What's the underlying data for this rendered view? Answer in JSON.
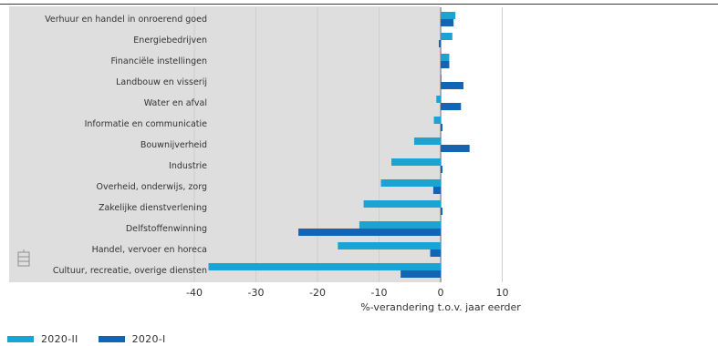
{
  "chart_data": {
    "type": "bar",
    "orientation": "horizontal",
    "categories": [
      "Verhuur en handel in onroerend goed",
      "Energiebedrijven",
      "Financiële instellingen",
      "Landbouw en visserij",
      "Water en afval",
      "Informatie en communicatie",
      "Bouwnijverheid",
      "Industrie",
      "Overheid, onderwijs, zorg",
      "Zakelijke dienstverlening",
      "Delfstoffenwinning",
      "Handel, vervoer en horeca",
      "Cultuur, recreatie, overige diensten"
    ],
    "series": [
      {
        "name": "2020-II",
        "color": "#1ba3d4",
        "values": [
          2.4,
          1.9,
          1.4,
          0.0,
          -0.7,
          -1.1,
          -4.3,
          -8.0,
          -9.7,
          -12.5,
          -13.2,
          -16.7,
          -37.7
        ]
      },
      {
        "name": "2020-I",
        "color": "#1464b4",
        "values": [
          2.1,
          -0.3,
          1.4,
          3.7,
          3.3,
          0.3,
          4.7,
          0.3,
          -1.2,
          0.3,
          -23.1,
          -1.7,
          -6.5
        ]
      }
    ],
    "xlabel": "%-verandering t.o.v. jaar eerder",
    "ylabel": "",
    "xlim": [
      -40,
      15
    ],
    "xticks": [
      -40,
      -30,
      -20,
      -10,
      0,
      10
    ],
    "grid": true,
    "legend_position": "bottom-left"
  }
}
